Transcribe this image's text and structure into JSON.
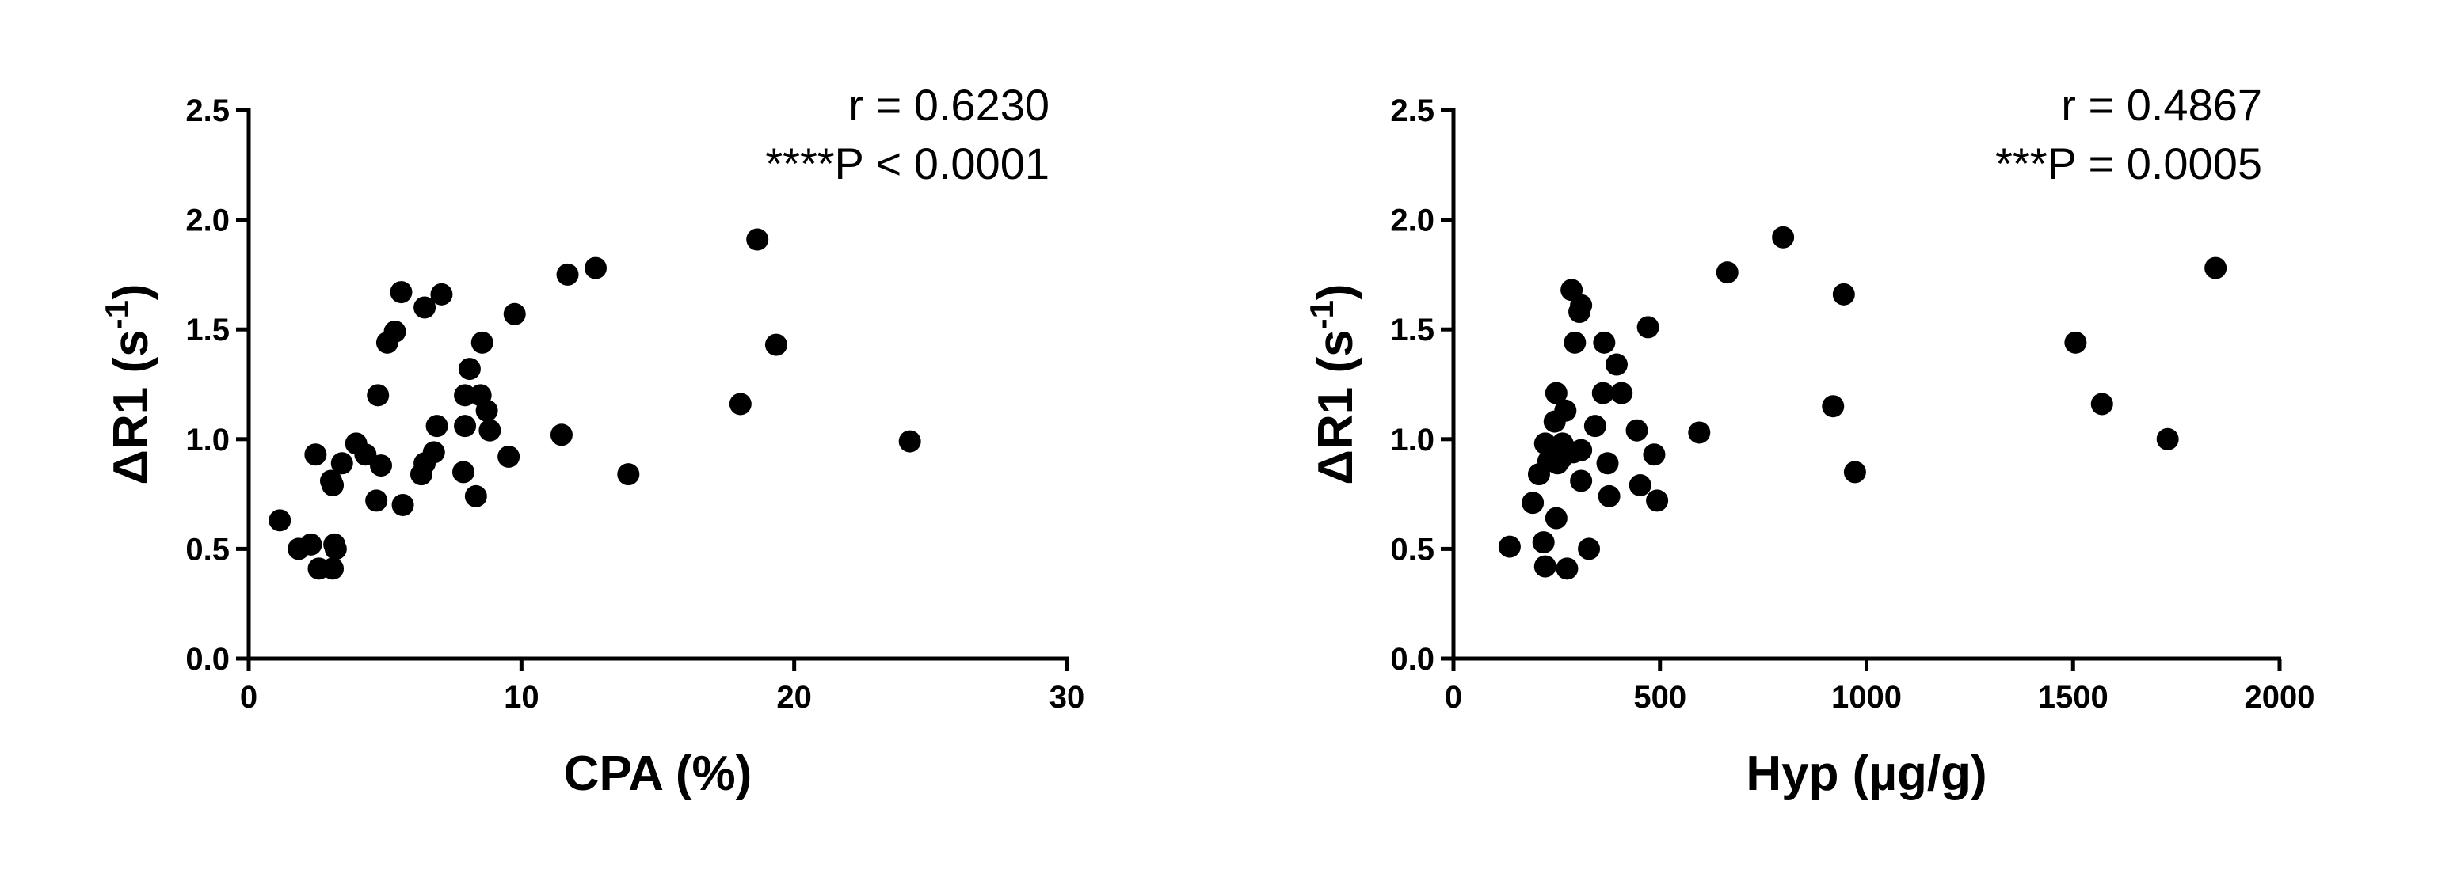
{
  "chart_data": [
    {
      "type": "scatter",
      "xlabel": "CPA (%)",
      "ylabel": {
        "text": "ΔR1 (s",
        "superscript": "-1",
        "suffix": ")"
      },
      "annotations": [
        "r = 0.6230",
        "****P < 0.0001"
      ],
      "color": "#000000",
      "xlim": [
        0,
        30
      ],
      "xticks": [
        0,
        10,
        20,
        30
      ],
      "ylim": [
        0,
        2.5
      ],
      "yticks": [
        {
          "value": 0,
          "label": "0.0"
        },
        0.5,
        {
          "value": 1,
          "label": "1.0"
        },
        1.5,
        {
          "value": 2,
          "label": "2.0"
        },
        2.5
      ],
      "x": [
        1.14,
        1.83,
        2.28,
        2.45,
        2.57,
        3.08,
        3.14,
        3.08,
        3.19,
        3.02,
        3.42,
        3.94,
        4.28,
        4.68,
        4.85,
        4.74,
        5.08,
        5.36,
        5.59,
        5.65,
        6.33,
        6.45,
        6.45,
        6.79,
        6.9,
        7.07,
        7.87,
        7.93,
        7.93,
        8.1,
        8.33,
        8.5,
        8.56,
        8.73,
        8.84,
        9.53,
        9.75,
        11.47,
        11.69,
        12.72,
        13.92,
        18.03,
        18.65,
        19.34,
        24.24
      ],
      "values": [
        0.63,
        0.5,
        0.52,
        0.93,
        0.41,
        0.79,
        0.52,
        0.41,
        0.5,
        0.81,
        0.89,
        0.98,
        0.93,
        0.72,
        0.88,
        1.2,
        1.44,
        1.49,
        1.67,
        0.7,
        0.84,
        0.89,
        1.6,
        0.94,
        1.06,
        1.66,
        0.85,
        1.06,
        1.2,
        1.32,
        0.74,
        1.2,
        1.44,
        1.13,
        1.04,
        0.92,
        1.57,
        1.02,
        1.75,
        1.78,
        0.84,
        1.16,
        1.91,
        1.43,
        0.99
      ]
    },
    {
      "type": "scatter",
      "xlabel": "Hyp (µg/g)",
      "ylabel": {
        "text": "ΔR1 (s",
        "superscript": "-1",
        "suffix": ")"
      },
      "annotations": [
        "r = 0.4867",
        "***P = 0.0005"
      ],
      "color": "#000000",
      "xlim": [
        0,
        2000
      ],
      "xticks": [
        0,
        500,
        1000,
        1500,
        2000
      ],
      "ylim": [
        0,
        2.5
      ],
      "yticks": [
        {
          "value": 0,
          "label": "0.0"
        },
        0.5,
        {
          "value": 1,
          "label": "1.0"
        },
        1.5,
        {
          "value": 2,
          "label": "2.0"
        },
        2.5
      ],
      "x": [
        136,
        192,
        207,
        222,
        218,
        222,
        230,
        241,
        245,
        249,
        249,
        252,
        260,
        264,
        271,
        275,
        286,
        290,
        294,
        305,
        309,
        309,
        309,
        328,
        343,
        362,
        365,
        373,
        377,
        395,
        407,
        444,
        452,
        471,
        486,
        493,
        595,
        663,
        798,
        919,
        945,
        972,
        1506,
        1570,
        1729,
        1845
      ],
      "values": [
        0.51,
        0.71,
        0.84,
        0.98,
        0.53,
        0.42,
        0.9,
        0.96,
        1.08,
        1.21,
        0.64,
        0.89,
        0.91,
        0.98,
        1.13,
        0.41,
        1.68,
        0.94,
        1.44,
        1.58,
        1.61,
        0.95,
        0.81,
        0.5,
        1.06,
        1.21,
        1.44,
        0.89,
        0.74,
        1.34,
        1.21,
        1.04,
        0.79,
        1.51,
        0.93,
        0.72,
        1.03,
        1.76,
        1.92,
        1.15,
        1.66,
        0.85,
        1.44,
        1.16,
        1.0,
        1.78
      ]
    }
  ]
}
